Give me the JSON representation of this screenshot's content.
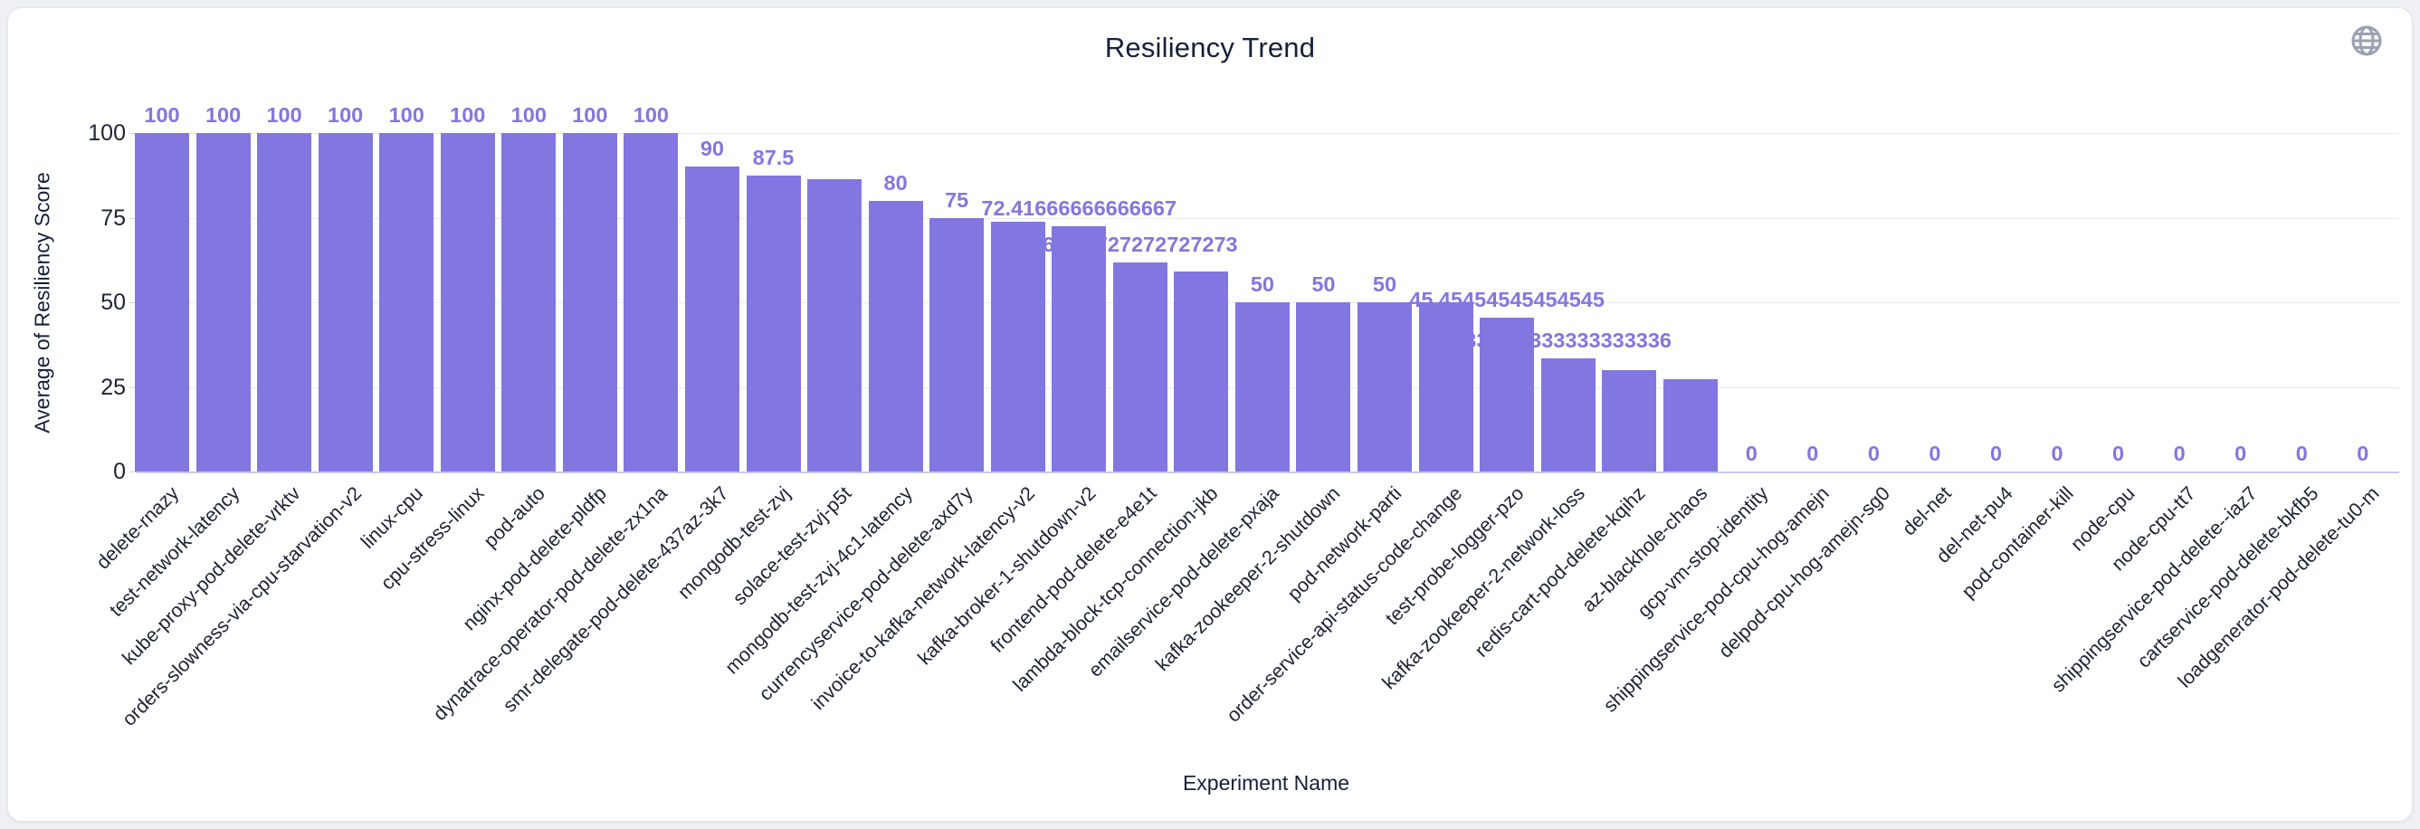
{
  "header": {
    "title": "Resiliency Trend"
  },
  "icons": {
    "globe": "globe-icon"
  },
  "colors": {
    "bar": "#8277e0",
    "value_label": "#8277e0",
    "axis_text": "#16203a",
    "gridline": "#ebebeb",
    "baseline": "#c6cbec",
    "card_background": "#ffffff",
    "page_background": "#eef0f3"
  },
  "chart_data": {
    "type": "bar",
    "title": "Resiliency Trend",
    "xlabel": "Experiment Name",
    "ylabel": "Average of Resiliency Score",
    "ylim": [
      0,
      100
    ],
    "yticks": [
      0,
      25,
      50,
      75,
      100
    ],
    "grid": true,
    "legend": false,
    "categories": [
      "delete-rnazy",
      "test-network-latency",
      "kube-proxy-pod-delete-vrktv",
      "orders-slowness-via-cpu-starvation-v2",
      "linux-cpu",
      "cpu-stress-linux",
      "pod-auto",
      "nginx-pod-delete-pldfp",
      "dynatrace-operator-pod-delete-zx1na",
      "smr-delegate-pod-delete-437az-3k7",
      "mongodb-test-zvj",
      "solace-test-zvj-p5t",
      "mongodb-test-zvj-4c1-latency",
      "currencyservice-pod-delete-axd7y",
      "invoice-to-kafka-network-latency-v2",
      "kafka-broker-1-shutdown-v2",
      "frontend-pod-delete-e4e1t",
      "lambda-block-tcp-connection-jkb",
      "emailservice-pod-delete-pxaja",
      "kafka-zookeeper-2-shutdown",
      "pod-network-parti",
      "order-service-api-status-code-change",
      "test-probe-logger-pzo",
      "kafka-zookeeper-2-network-loss",
      "redis-cart-pod-delete-kqihz",
      "az-blackhole-chaos",
      "gcp-vm-stop-identity",
      "shippingservice-pod-cpu-hog-amejn",
      "delpod-cpu-hog-amejn-sg0",
      "del-net",
      "del-net-pu4",
      "pod-container-kill",
      "node-cpu",
      "node-cpu-tt7",
      "shippingservice-pod-delete--iaz7",
      "cartservice-pod-delete-bkfb5",
      "loadgenerator-pod-delete-tu0-m"
    ],
    "values": [
      100,
      100,
      100,
      100,
      100,
      100,
      100,
      100,
      100,
      90,
      87.5,
      86.25,
      80,
      75,
      73.7,
      72.41666666666667,
      61.72727272727273,
      59,
      50,
      50,
      50,
      50,
      45.45454545454545,
      33.333333333333336,
      30,
      27.3,
      0,
      0,
      0,
      0,
      0,
      0,
      0,
      0,
      0,
      0,
      0
    ],
    "value_labels": [
      "100",
      "100",
      "100",
      "100",
      "100",
      "100",
      "100",
      "100",
      "100",
      "90",
      "87.5",
      null,
      "80",
      "75",
      null,
      "72.41666666666667",
      "61.72727272727273",
      null,
      "50",
      "50",
      "50",
      null,
      "45.45454545454545",
      "33.333333333333336",
      null,
      null,
      "0",
      "0",
      "0",
      "0",
      "0",
      "0",
      "0",
      "0",
      "0",
      "0",
      "0"
    ]
  }
}
